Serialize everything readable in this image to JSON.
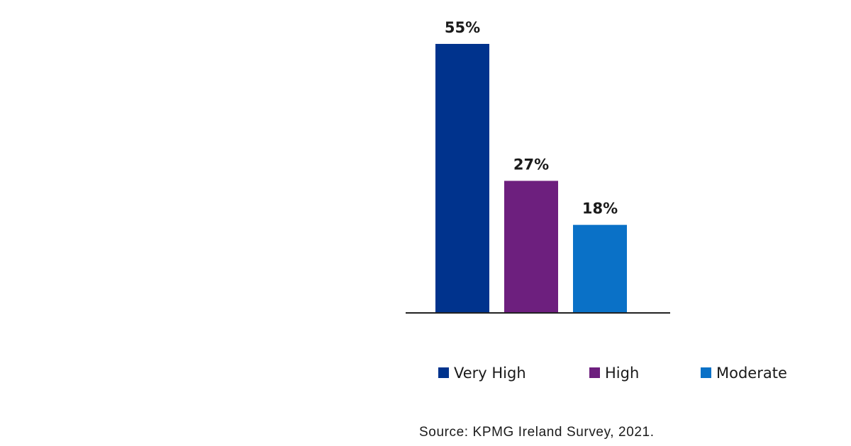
{
  "chart_data": {
    "type": "bar",
    "categories": [
      "Very High",
      "High",
      "Moderate"
    ],
    "values": [
      55,
      27,
      18
    ],
    "data_labels": [
      "55%",
      "27%",
      "18%"
    ],
    "colors": [
      "#00338d",
      "#6d1f7e",
      "#0a71c7"
    ],
    "ylim": [
      0,
      55
    ],
    "grid": false,
    "legend": {
      "position": "bottom",
      "entries": [
        {
          "label": "Very High",
          "color": "#00338d"
        },
        {
          "label": "High",
          "color": "#6d1f7e"
        },
        {
          "label": "Moderate",
          "color": "#0a71c7"
        }
      ]
    }
  },
  "source": "Source: KPMG Ireland Survey, 2021."
}
